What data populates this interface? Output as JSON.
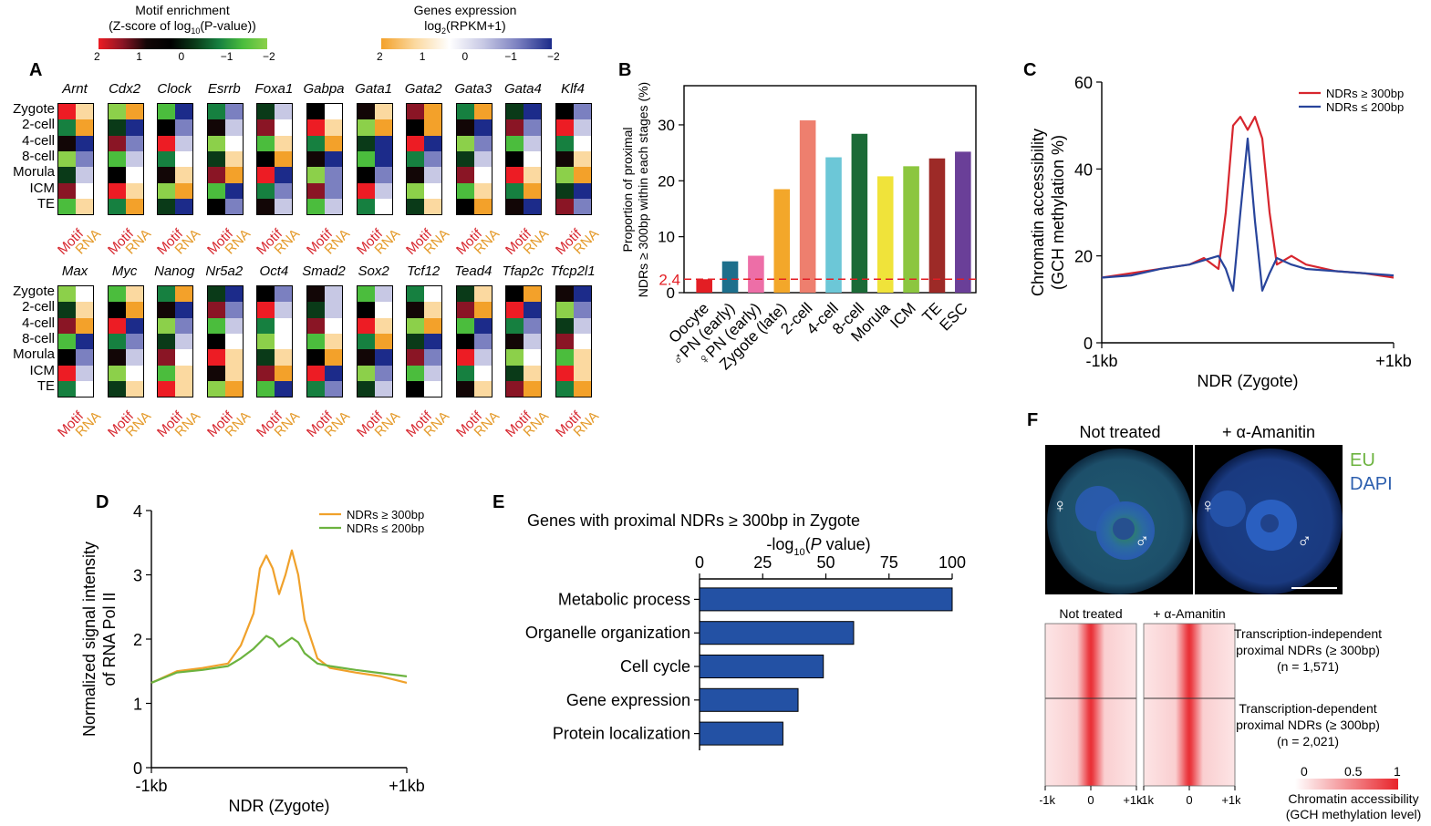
{
  "panel_letters": {
    "a": "A",
    "b": "B",
    "c": "C",
    "d": "D",
    "e": "E",
    "f": "F"
  },
  "legends": {
    "motif": {
      "title1": "Motif enrichment",
      "title2": "(Z-score of log",
      "title2_sub": "10",
      "title2_tail": "(P-value))",
      "ticks": [
        "2",
        "1",
        "0",
        "−1",
        "−2"
      ],
      "colors": [
        "#ed1c24",
        "#8a1525",
        "#120606",
        "#000000",
        "#0a3a18",
        "#168040",
        "#4bbd3d",
        "#8cd04a"
      ]
    },
    "genes": {
      "title1": "Genes expression",
      "title2": "log",
      "title2_sub": "2",
      "title2_tail": "(RPKM+1)",
      "ticks": [
        "2",
        "1",
        "0",
        "−1",
        "−2"
      ],
      "colors": [
        "#f3a12a",
        "#fbd9a0",
        "#ffffff",
        "#c7c8e4",
        "#7b80c0",
        "#1c2b8a"
      ]
    }
  },
  "panel_a": {
    "stages": [
      "Zygote",
      "2-cell",
      "4-cell",
      "8-cell",
      "Morula",
      "ICM",
      "TE"
    ],
    "col_motif": "Motif",
    "col_rna": "RNA",
    "row1_genes": [
      "Arnt",
      "Cdx2",
      "Clock",
      "Esrrb",
      "Foxa1",
      "Gabpa",
      "Gata1",
      "Gata2",
      "Gata3",
      "Gata4",
      "Klf4"
    ],
    "row2_genes": [
      "Max",
      "Myc",
      "Nanog",
      "Nr5a2",
      "Oct4",
      "Smad2",
      "Sox2",
      "Tcf12",
      "Tead4",
      "Tfap2c",
      "Tfcp2l1"
    ]
  },
  "chart_data": [
    {
      "type": "bar",
      "panel": "B",
      "ylabel1": "Proportion of proximal",
      "ylabel2": "NDRs ≥ 300bp within each stages (%)",
      "categories": [
        "Oocyte",
        "♂PN (early)",
        "♀PN (early)",
        "Zygote (late)",
        "2-cell",
        "4-cell",
        "8-cell",
        "Morula",
        "ICM",
        "TE",
        "ESC"
      ],
      "values": [
        2.4,
        5.6,
        6.6,
        18.5,
        30.8,
        24.2,
        28.4,
        20.8,
        22.6,
        24.0,
        25.2
      ],
      "colors": [
        "#e31e24",
        "#1d6f8c",
        "#ed6ea7",
        "#f3a72a",
        "#ee7f6e",
        "#6cc7d7",
        "#1b6a37",
        "#f0e33a",
        "#8cc63f",
        "#9d2a27",
        "#6a3f98"
      ],
      "ylim": [
        0,
        37
      ],
      "yticks": [
        0,
        10,
        20,
        30
      ],
      "reference_line": 2.4,
      "reference_label": "2.4"
    },
    {
      "type": "line",
      "panel": "C",
      "xlabel": "NDR (Zygote)",
      "ylabel1": "Chromatin accessibility",
      "ylabel2": "(GCH methylation %)",
      "xtick_labels": [
        "-1kb",
        "+1kb"
      ],
      "ylim": [
        0,
        60
      ],
      "yticks": [
        0,
        20,
        40,
        60
      ],
      "x": [
        -1000,
        -800,
        -600,
        -400,
        -300,
        -200,
        -150,
        -100,
        -50,
        0,
        50,
        100,
        150,
        200,
        300,
        400,
        600,
        800,
        1000
      ],
      "series": [
        {
          "name": "NDRs ≥ 300bp",
          "color": "#d7262e",
          "values": [
            15,
            16,
            17,
            18,
            19.5,
            17,
            30,
            50,
            52,
            49,
            52,
            47,
            30,
            18,
            20,
            18,
            16.5,
            16,
            15
          ]
        },
        {
          "name": "NDRs ≤ 200bp",
          "color": "#28449b",
          "values": [
            15,
            15.5,
            17,
            18,
            19,
            20,
            17,
            12,
            30,
            47,
            28,
            12,
            16,
            19.5,
            18,
            17,
            16.5,
            16,
            15.5
          ]
        }
      ]
    },
    {
      "type": "line",
      "panel": "D",
      "xlabel": "NDR (Zygote)",
      "ylabel1": "Normalized signal intensity",
      "ylabel2": "of RNA Pol II",
      "xtick_labels": [
        "-1kb",
        "+1kb"
      ],
      "ylim": [
        0,
        4
      ],
      "yticks": [
        0,
        1,
        2,
        3,
        4
      ],
      "x": [
        -1000,
        -800,
        -600,
        -400,
        -300,
        -200,
        -150,
        -100,
        -50,
        0,
        50,
        100,
        150,
        200,
        300,
        400,
        600,
        800,
        1000
      ],
      "series": [
        {
          "name": "NDRs ≥ 300bp",
          "color": "#f0a12b",
          "values": [
            1.32,
            1.5,
            1.55,
            1.62,
            1.9,
            2.4,
            3.1,
            3.3,
            3.1,
            2.7,
            3.0,
            3.38,
            3.0,
            2.3,
            1.7,
            1.55,
            1.48,
            1.42,
            1.32
          ]
        },
        {
          "name": "NDRs ≤ 200bp",
          "color": "#6cb33f",
          "values": [
            1.32,
            1.48,
            1.52,
            1.58,
            1.7,
            1.85,
            1.95,
            2.05,
            2.0,
            1.88,
            1.95,
            2.02,
            1.95,
            1.78,
            1.62,
            1.58,
            1.52,
            1.47,
            1.42
          ]
        }
      ]
    },
    {
      "type": "bar",
      "orientation": "horizontal",
      "panel": "E",
      "title": "Genes with proximal NDRs ≥ 300bp in Zygote",
      "xlabel_pre": "-log",
      "xlabel_sub": "10",
      "xlabel_open": "(",
      "xlabel_italic": "P",
      "xlabel_post": " value)",
      "categories": [
        "Metabolic process",
        "Organelle organization",
        "Cell cycle",
        "Gene expression",
        "Protein localization"
      ],
      "values": [
        100,
        61,
        49,
        39,
        33
      ],
      "color": "#2351a4",
      "xlim": [
        0,
        100
      ],
      "xticks": [
        0,
        25,
        50,
        75,
        100
      ]
    }
  ],
  "panel_f": {
    "col_not_treated": "Not treated",
    "col_amanitin": "+ α-Amanitin",
    "eu_label": "EU",
    "dapi_label": "DAPI",
    "female_symbol": "♀",
    "male_symbol": "♂",
    "heat_col1": "Not treated",
    "heat_col2": "+ α-Amanitin",
    "group1_l1": "Transcription-independent",
    "group1_l2": "proximal NDRs (≥ 300bp)",
    "group1_l3": "(n = 1,571)",
    "group2_l1": "Transcription-dependent",
    "group2_l2": "proximal NDRs (≥ 300bp)",
    "group2_l3": "(n = 2,021)",
    "heat_xticks": [
      "-1k",
      "0",
      "+1k"
    ],
    "scale_ticks": [
      "0",
      "0.5",
      "1"
    ],
    "scale_title1": "Chromatin accessibility",
    "scale_title2": "(GCH methylation level)",
    "eu_color": "#6cb33f",
    "dapi_color": "#2d5fae",
    "heat_color": "#e8232a"
  }
}
